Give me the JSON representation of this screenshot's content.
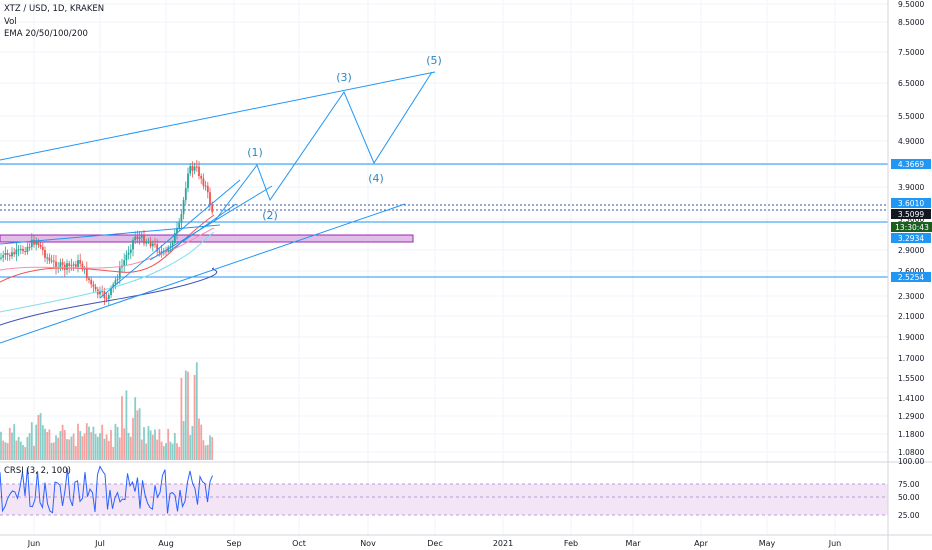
{
  "header": {
    "symbol_line": "XTZ / USD, 1D, KRAKEN",
    "vol_label": "Vol",
    "ema_label": "EMA 20/50/100/200"
  },
  "rsi_panel": {
    "title": "CRSI (3, 2, 100)"
  },
  "colors": {
    "line_blue": "#2196f3",
    "wave_label": "#2e86c1",
    "up": "#26a69a",
    "down": "#ef5350",
    "zone_fill": "#e1bee7",
    "zone_stroke": "#9c27b0",
    "rsi_line": "#2962ff",
    "rsi_band": "#f3e5f5",
    "axis_badge": "#2196f3",
    "price_badge": "#131722",
    "countdown_badge": "#1b5e20"
  },
  "chart_data": {
    "type": "candlestick",
    "symbol": "XTZ / USD",
    "interval": "1D",
    "exchange": "KRAKEN",
    "y_scale": "log",
    "price_axis_ticks": [
      "9.5000",
      "8.5000",
      "7.5000",
      "6.5000",
      "5.5000",
      "4.9000",
      "4.3000",
      "3.9000",
      "3.3000",
      "2.9000",
      "2.6000",
      "2.3000",
      "2.1000",
      "1.9000",
      "1.7000",
      "1.5500",
      "1.4100",
      "1.2900",
      "1.1800",
      "1.0800"
    ],
    "rsi_axis_ticks": [
      "100.00",
      "75.00",
      "50.00",
      "25.00"
    ],
    "x_axis_ticks": [
      "Jun",
      "Jul",
      "Aug",
      "Sep",
      "Oct",
      "Nov",
      "Dec",
      "2021",
      "Feb",
      "Mar",
      "Apr",
      "May",
      "Jun"
    ],
    "horizontal_levels": [
      {
        "label": "4.3669",
        "value": 4.3669
      },
      {
        "label": "3.6010",
        "value": 3.601
      },
      {
        "label": "3.5099",
        "value": 3.5099
      },
      {
        "label": "3.2934",
        "value": 3.2934
      },
      {
        "label": "2.5254",
        "value": 2.5254
      }
    ],
    "last_price": "3.5099",
    "countdown": "13:30:43",
    "wave_labels": [
      "(1)",
      "(2)",
      "(3)",
      "(4)",
      "(5)"
    ],
    "indicators": [
      "Vol",
      "EMA 20/50/100/200",
      "CRSI (3, 2, 100)"
    ],
    "rsi_levels": [
      75,
      50,
      25
    ]
  }
}
